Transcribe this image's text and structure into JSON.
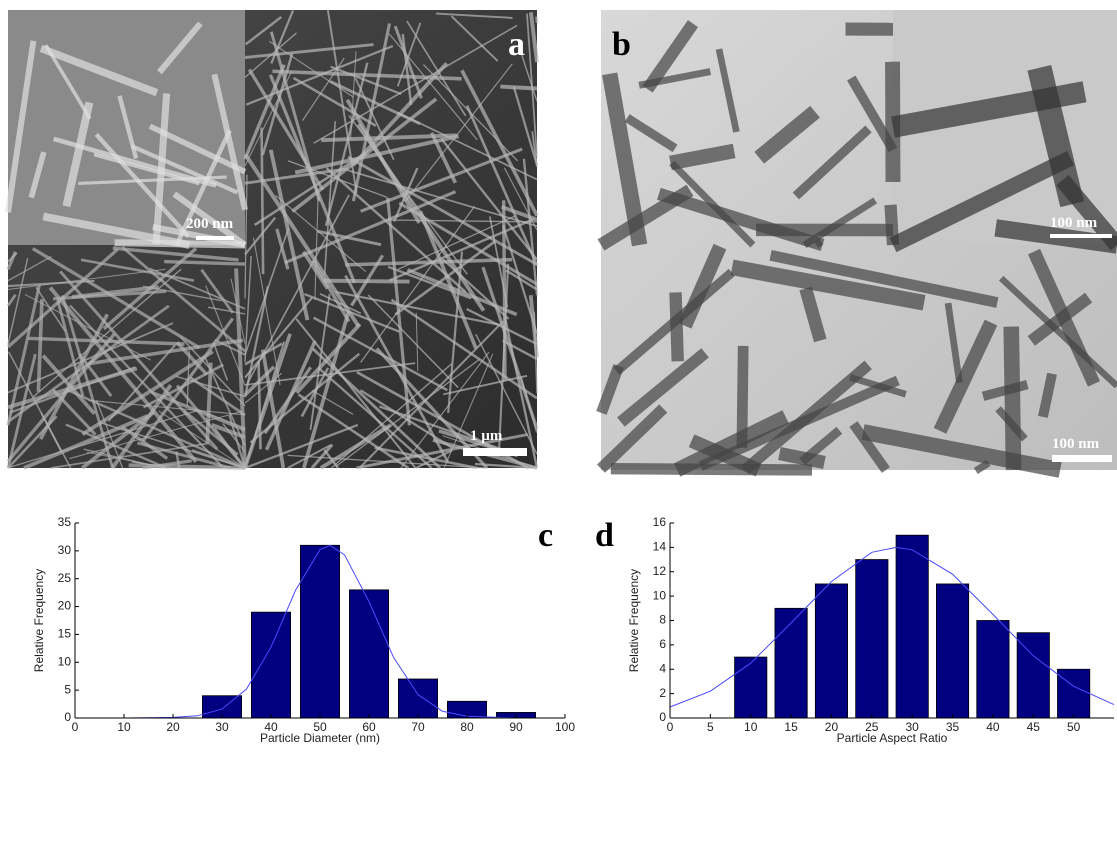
{
  "panels": [
    {
      "label": "a",
      "inset_scale": "200 nm",
      "scale": "1 µm"
    },
    {
      "label": "b",
      "inset_scale": "100 nm",
      "scale": "100 nm"
    }
  ],
  "chart_data": [
    {
      "type": "bar",
      "panel_label": "c",
      "x_label": "Particle Diameter (nm)",
      "y_label": "Relative Frequency",
      "x": [
        30,
        40,
        50,
        60,
        70,
        80,
        90
      ],
      "values": [
        4,
        19,
        31,
        23,
        7,
        3,
        1
      ],
      "color": "#000080",
      "xlim": [
        0,
        100
      ],
      "xticks": [
        0,
        10,
        20,
        30,
        40,
        50,
        60,
        70,
        80,
        90,
        100
      ],
      "ylim": [
        0,
        35
      ],
      "yticks": [
        0,
        5,
        10,
        15,
        20,
        25,
        30,
        35
      ],
      "fit": {
        "color": "#4a4aff",
        "x": [
          0,
          10,
          20,
          25,
          30,
          35,
          40,
          45,
          50,
          52,
          55,
          60,
          65,
          70,
          75,
          80,
          90,
          100
        ],
        "y": [
          0,
          0,
          0.1,
          0.4,
          1.6,
          5.2,
          12.7,
          22.9,
          30.2,
          31,
          29.3,
          20.9,
          10.9,
          4.2,
          1.2,
          0.3,
          0,
          0
        ]
      }
    },
    {
      "type": "bar",
      "panel_label": "d",
      "x_label": "Particle Aspect Ratio",
      "y_label": "Relative Frequency",
      "x": [
        10,
        15,
        20,
        25,
        30,
        35,
        40,
        45,
        50
      ],
      "values": [
        5,
        9,
        11,
        13,
        15,
        11,
        8,
        7,
        4
      ],
      "color": "#000080",
      "xlim": [
        0,
        55
      ],
      "xticks": [
        0,
        5,
        10,
        15,
        20,
        25,
        30,
        35,
        40,
        45,
        50
      ],
      "ylim": [
        0,
        16
      ],
      "yticks": [
        0,
        2,
        4,
        6,
        8,
        10,
        12,
        14,
        16
      ],
      "fit": {
        "color": "#4a4aff",
        "x": [
          0,
          5,
          10,
          15,
          20,
          25,
          28,
          30,
          35,
          40,
          45,
          50,
          55
        ],
        "y": [
          0.9,
          2.2,
          4.5,
          7.8,
          11.2,
          13.6,
          14,
          13.8,
          11.8,
          8.5,
          5.1,
          2.6,
          1.1
        ]
      }
    }
  ]
}
